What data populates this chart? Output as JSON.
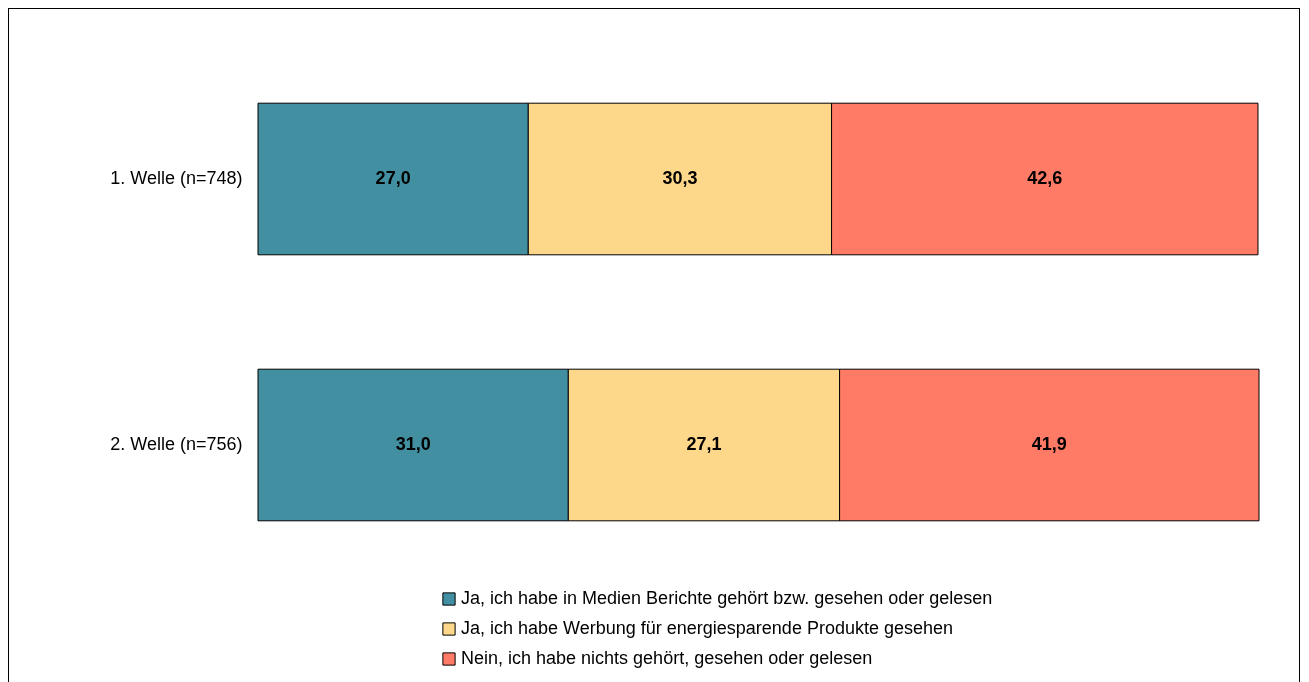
{
  "chart_data": {
    "type": "bar",
    "orientation": "horizontal",
    "stacked": true,
    "categories": [
      "1. Welle (n=748)",
      "2. Welle (n=756)"
    ],
    "xlim": [
      0,
      100
    ],
    "tick_labels": "y",
    "legend": "bottom",
    "series": [
      {
        "name": "Ja, ich habe in Medien Berichte gehört bzw. gesehen oder gelesen",
        "color": "#418fa0",
        "values": [
          27.0,
          31.0
        ],
        "value_labels": [
          "27,0",
          "31,0"
        ]
      },
      {
        "name": "Ja, ich habe Werbung für energiesparende Produkte gesehen",
        "color": "#fed88a",
        "values": [
          30.3,
          27.1
        ],
        "value_labels": [
          "30,3",
          "27,1"
        ]
      },
      {
        "name": "Nein, ich habe nichts gehört, gesehen oder gelesen",
        "color": "#ff7b66",
        "values": [
          42.6,
          41.9
        ],
        "value_labels": [
          "42,6",
          "41,9"
        ]
      }
    ]
  }
}
